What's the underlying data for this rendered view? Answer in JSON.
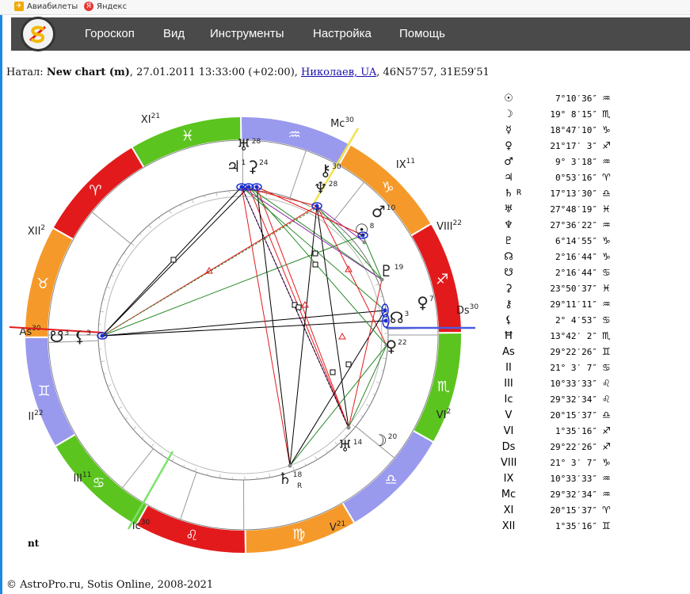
{
  "bookmarks": [
    {
      "label": "Авиабилеты",
      "icon": "plane-icon"
    },
    {
      "label": "Яндекс",
      "icon": "yandex-icon"
    }
  ],
  "nav": {
    "items": [
      "Гороскоп",
      "Вид",
      "Инструменты",
      "Настройка",
      "Помощь"
    ]
  },
  "natal": {
    "prefix": "Натал:",
    "name": "New chart (m)",
    "datetime": ", 27.01.2011 13:33:00 (+02:00), ",
    "place": "Николаев, UA",
    "coords": ", 46N57′57, 31E59′51"
  },
  "chart": {
    "signs": [
      "♈",
      "♉",
      "♊",
      "♋",
      "♌",
      "♍",
      "♎",
      "♏",
      "♐",
      "♑",
      "♒",
      "♓"
    ],
    "sign_colors": [
      "#e31a1c",
      "#f59a2a",
      "#9999ee",
      "#5cc41f",
      "#e31a1c",
      "#f59a2a",
      "#9999ee",
      "#5cc41f",
      "#e31a1c",
      "#f59a2a",
      "#9999ee",
      "#5cc41f"
    ],
    "houses": [
      {
        "label": "As",
        "deg": "30"
      },
      {
        "label": "II",
        "deg": "22"
      },
      {
        "label": "III",
        "deg": "11"
      },
      {
        "label": "Ic",
        "deg": "30"
      },
      {
        "label": "V",
        "deg": "21"
      },
      {
        "label": "VI",
        "deg": "2"
      },
      {
        "label": "Ds",
        "deg": "30"
      },
      {
        "label": "VIII",
        "deg": "22"
      },
      {
        "label": "IX",
        "deg": "11"
      },
      {
        "label": "Mc",
        "deg": "30"
      },
      {
        "label": "XI",
        "deg": "21"
      },
      {
        "label": "XII",
        "deg": "2"
      }
    ],
    "planets": [
      {
        "glyph": "♃",
        "deg": "1"
      },
      {
        "glyph": "⚳",
        "deg": "24"
      },
      {
        "glyph": "♅",
        "deg": "28"
      },
      {
        "glyph": "⚷",
        "deg": "30"
      },
      {
        "glyph": "♆",
        "deg": "28"
      },
      {
        "glyph": "♂",
        "deg": "10"
      },
      {
        "glyph": "☉",
        "deg": "8"
      },
      {
        "glyph": "♇",
        "deg": "19"
      },
      {
        "glyph": "♀",
        "deg": "7"
      },
      {
        "glyph": "☊",
        "deg": "3"
      },
      {
        "glyph": "♀",
        "deg": "22"
      },
      {
        "glyph": "♅",
        "deg": "14"
      },
      {
        "glyph": "☽",
        "deg": "20"
      },
      {
        "glyph": "♄",
        "deg": "18"
      },
      {
        "glyph": "☋",
        "deg": "3"
      },
      {
        "glyph": "⚸",
        "deg": "3"
      }
    ],
    "saturn_retro": "R",
    "nt": "nt"
  },
  "positions": [
    {
      "sym": "☉",
      "r": "",
      "val": "7°10′36″",
      "sign": "♒"
    },
    {
      "sym": "☽",
      "r": "",
      "val": "19° 8′15″",
      "sign": "♏"
    },
    {
      "sym": "☿",
      "r": "",
      "val": "18°47′10″",
      "sign": "♑"
    },
    {
      "sym": "♀",
      "r": "",
      "val": "21°17′ 3″",
      "sign": "♐"
    },
    {
      "sym": "♂",
      "r": "",
      "val": "9° 3′18″",
      "sign": "♒"
    },
    {
      "sym": "♃",
      "r": "",
      "val": "0°53′16″",
      "sign": "♈"
    },
    {
      "sym": "♄",
      "r": "R",
      "val": "17°13′30″",
      "sign": "♎"
    },
    {
      "sym": "♅",
      "r": "",
      "val": "27°48′19″",
      "sign": "♓"
    },
    {
      "sym": "♆",
      "r": "",
      "val": "27°36′22″",
      "sign": "♒"
    },
    {
      "sym": "♇",
      "r": "",
      "val": "6°14′55″",
      "sign": "♑"
    },
    {
      "sym": "☊",
      "r": "",
      "val": "2°16′44″",
      "sign": "♑"
    },
    {
      "sym": "☋",
      "r": "",
      "val": "2°16′44″",
      "sign": "♋"
    },
    {
      "sym": "⚳",
      "r": "",
      "val": "23°50′37″",
      "sign": "♓"
    },
    {
      "sym": "⚷",
      "r": "",
      "val": "29°11′11″",
      "sign": "♒"
    },
    {
      "sym": "⚸",
      "r": "",
      "val": "2° 4′53″",
      "sign": "♋"
    },
    {
      "sym": "Ħ",
      "r": "",
      "val": "13°42′ 2″",
      "sign": "♏"
    },
    {
      "sym": "As",
      "r": "",
      "val": "29°22′26″",
      "sign": "♊"
    },
    {
      "sym": "II",
      "r": "",
      "val": "21° 3′ 7″",
      "sign": "♋"
    },
    {
      "sym": "III",
      "r": "",
      "val": "10°33′33″",
      "sign": "♌"
    },
    {
      "sym": "Ic",
      "r": "",
      "val": "29°32′34″",
      "sign": "♌"
    },
    {
      "sym": "V",
      "r": "",
      "val": "20°15′37″",
      "sign": "♎"
    },
    {
      "sym": "VI",
      "r": "",
      "val": "1°35′16″",
      "sign": "♐"
    },
    {
      "sym": "Ds",
      "r": "",
      "val": "29°22′26″",
      "sign": "♐"
    },
    {
      "sym": "VIII",
      "r": "",
      "val": "21° 3′ 7″",
      "sign": "♑"
    },
    {
      "sym": "IX",
      "r": "",
      "val": "10°33′33″",
      "sign": "♒"
    },
    {
      "sym": "Mc",
      "r": "",
      "val": "29°32′34″",
      "sign": "♒"
    },
    {
      "sym": "XI",
      "r": "",
      "val": "20°15′37″",
      "sign": "♈"
    },
    {
      "sym": "XII",
      "r": "",
      "val": "1°35′16″",
      "sign": "♊"
    }
  ],
  "footer": "© AstroPro.ru, Sotis Online, 2008-2021"
}
